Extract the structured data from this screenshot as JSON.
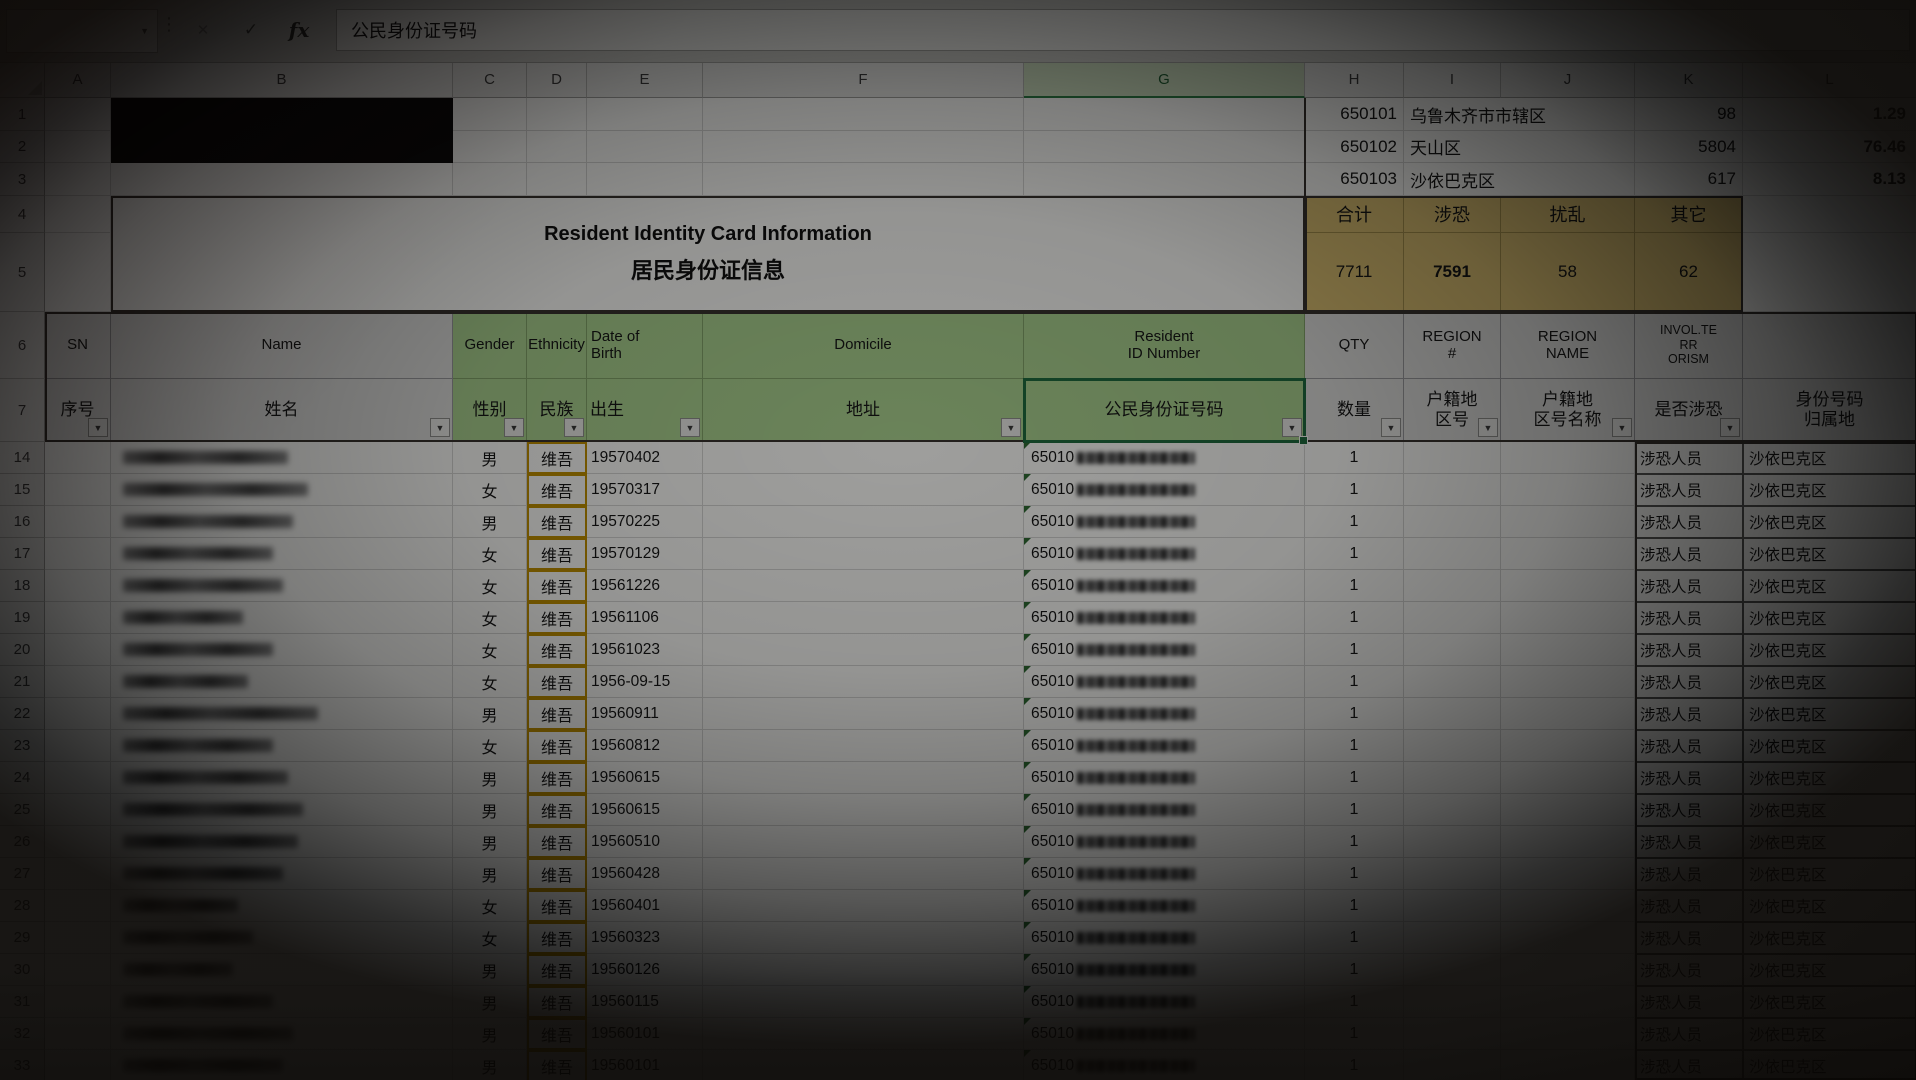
{
  "formula_bar": {
    "formula_value": "公民身份证号码",
    "fx_label": "fx",
    "cancel_glyph": "✕",
    "enter_glyph": "✓",
    "name_box_dropdown_glyph": "▼",
    "separator_glyph": "⋮",
    "filter_arrow_glyph": "▼"
  },
  "column_headers": [
    "A",
    "B",
    "C",
    "D",
    "E",
    "F",
    "G",
    "H",
    "I",
    "J",
    "K",
    "L"
  ],
  "row_headers": [
    "1",
    "2",
    "3",
    "4",
    "5",
    "6",
    "7",
    "14",
    "15",
    "16",
    "17",
    "18",
    "19",
    "20",
    "21",
    "22",
    "23",
    "24",
    "25",
    "26",
    "27",
    "28",
    "29",
    "30",
    "31",
    "32",
    "33"
  ],
  "selected_column": "G",
  "region_stats": {
    "rows": [
      {
        "code": "650101",
        "name": "乌鲁木齐市市辖区",
        "count": "98",
        "pct": "1.29"
      },
      {
        "code": "650102",
        "name": "天山区",
        "count": "5804",
        "pct": "76.46"
      },
      {
        "code": "650103",
        "name": "沙依巴克区",
        "count": "617",
        "pct": "8.13"
      }
    ]
  },
  "summary": {
    "cells": [
      {
        "label": "合计",
        "value": "7711",
        "bold": false
      },
      {
        "label": "涉恐",
        "value": "7591",
        "bold": true
      },
      {
        "label": "扰乱",
        "value": "58",
        "bold": false
      },
      {
        "label": "其它",
        "value": "62",
        "bold": false
      }
    ]
  },
  "title": {
    "line1": "Resident Identity Card Information",
    "line2": "居民身份证信息"
  },
  "table": {
    "header_row_en": {
      "sn": "SN",
      "name": "Name",
      "gender": "Gender",
      "ethnicity": "Ethnicity",
      "dob": "Date of\nBirth",
      "domicile": "Domicile",
      "resident_id": "Resident\nID Number",
      "qty": "QTY",
      "region_no": "REGION\n#",
      "region_name": "REGION\nNAME",
      "involve_terrorism": "INVOL.TE\nRR\nORISM",
      "id_region": ""
    },
    "header_row_zh": {
      "sn": "序号",
      "name": "姓名",
      "gender": "性别",
      "ethnicity": "民族",
      "dob": "出生",
      "domicile": "地址",
      "resident_id": "公民身份证号码",
      "qty": "数量",
      "region_no": "户籍地\n区号",
      "region_name": "户籍地\n区号名称",
      "involve_terrorism": "是否涉恐",
      "id_region": "身份号码\n归属地"
    },
    "rows": [
      {
        "row": "14",
        "gender": "男",
        "ethnicity": "维吾",
        "dob": "19570402",
        "id_prefix": "65010",
        "qty": "1",
        "involve": "涉恐人员",
        "id_region": "沙依巴克区",
        "name_w": 165
      },
      {
        "row": "15",
        "gender": "女",
        "ethnicity": "维吾",
        "dob": "19570317",
        "id_prefix": "65010",
        "qty": "1",
        "involve": "涉恐人员",
        "id_region": "沙依巴克区",
        "name_w": 185
      },
      {
        "row": "16",
        "gender": "男",
        "ethnicity": "维吾",
        "dob": "19570225",
        "id_prefix": "65010",
        "qty": "1",
        "involve": "涉恐人员",
        "id_region": "沙依巴克区",
        "name_w": 170
      },
      {
        "row": "17",
        "gender": "女",
        "ethnicity": "维吾",
        "dob": "19570129",
        "id_prefix": "65010",
        "qty": "1",
        "involve": "涉恐人员",
        "id_region": "沙依巴克区",
        "name_w": 150
      },
      {
        "row": "18",
        "gender": "女",
        "ethnicity": "维吾",
        "dob": "19561226",
        "id_prefix": "65010",
        "qty": "1",
        "involve": "涉恐人员",
        "id_region": "沙依巴克区",
        "name_w": 160
      },
      {
        "row": "19",
        "gender": "女",
        "ethnicity": "维吾",
        "dob": "19561106",
        "id_prefix": "65010",
        "qty": "1",
        "involve": "涉恐人员",
        "id_region": "沙依巴克区",
        "name_w": 120
      },
      {
        "row": "20",
        "gender": "女",
        "ethnicity": "维吾",
        "dob": "19561023",
        "id_prefix": "65010",
        "qty": "1",
        "involve": "涉恐人员",
        "id_region": "沙依巴克区",
        "name_w": 150
      },
      {
        "row": "21",
        "gender": "女",
        "ethnicity": "维吾",
        "dob": "1956-09-15",
        "id_prefix": "65010",
        "qty": "1",
        "involve": "涉恐人员",
        "id_region": "沙依巴克区",
        "name_w": 125
      },
      {
        "row": "22",
        "gender": "男",
        "ethnicity": "维吾",
        "dob": "19560911",
        "id_prefix": "65010",
        "qty": "1",
        "involve": "涉恐人员",
        "id_region": "沙依巴克区",
        "name_w": 195
      },
      {
        "row": "23",
        "gender": "女",
        "ethnicity": "维吾",
        "dob": "19560812",
        "id_prefix": "65010",
        "qty": "1",
        "involve": "涉恐人员",
        "id_region": "沙依巴克区",
        "name_w": 150
      },
      {
        "row": "24",
        "gender": "男",
        "ethnicity": "维吾",
        "dob": "19560615",
        "id_prefix": "65010",
        "qty": "1",
        "involve": "涉恐人员",
        "id_region": "沙依巴克区",
        "name_w": 165
      },
      {
        "row": "25",
        "gender": "男",
        "ethnicity": "维吾",
        "dob": "19560615",
        "id_prefix": "65010",
        "qty": "1",
        "involve": "涉恐人员",
        "id_region": "沙依巴克区",
        "name_w": 180
      },
      {
        "row": "26",
        "gender": "男",
        "ethnicity": "维吾",
        "dob": "19560510",
        "id_prefix": "65010",
        "qty": "1",
        "involve": "涉恐人员",
        "id_region": "沙依巴克区",
        "name_w": 175
      },
      {
        "row": "27",
        "gender": "男",
        "ethnicity": "维吾",
        "dob": "19560428",
        "id_prefix": "65010",
        "qty": "1",
        "involve": "涉恐人员",
        "id_region": "沙依巴克区",
        "name_w": 160
      },
      {
        "row": "28",
        "gender": "女",
        "ethnicity": "维吾",
        "dob": "19560401",
        "id_prefix": "65010",
        "qty": "1",
        "involve": "涉恐人员",
        "id_region": "沙依巴克区",
        "name_w": 115
      },
      {
        "row": "29",
        "gender": "女",
        "ethnicity": "维吾",
        "dob": "19560323",
        "id_prefix": "65010",
        "qty": "1",
        "involve": "涉恐人员",
        "id_region": "沙依巴克区",
        "name_w": 130
      },
      {
        "row": "30",
        "gender": "男",
        "ethnicity": "维吾",
        "dob": "19560126",
        "id_prefix": "65010",
        "qty": "1",
        "involve": "涉恐人员",
        "id_region": "沙依巴克区",
        "name_w": 110
      },
      {
        "row": "31",
        "gender": "男",
        "ethnicity": "维吾",
        "dob": "19560115",
        "id_prefix": "65010",
        "qty": "1",
        "involve": "涉恐人员",
        "id_region": "沙依巴克区",
        "name_w": 150
      },
      {
        "row": "32",
        "gender": "男",
        "ethnicity": "维吾",
        "dob": "19560101",
        "id_prefix": "65010",
        "qty": "1",
        "involve": "涉恐人员",
        "id_region": "沙依巴克区",
        "name_w": 170
      },
      {
        "row": "33",
        "gender": "男",
        "ethnicity": "维吾",
        "dob": "19560101",
        "id_prefix": "65010",
        "qty": "1",
        "involve": "涉恐人员",
        "id_region": "沙依巴克区",
        "name_w": 160
      }
    ]
  }
}
